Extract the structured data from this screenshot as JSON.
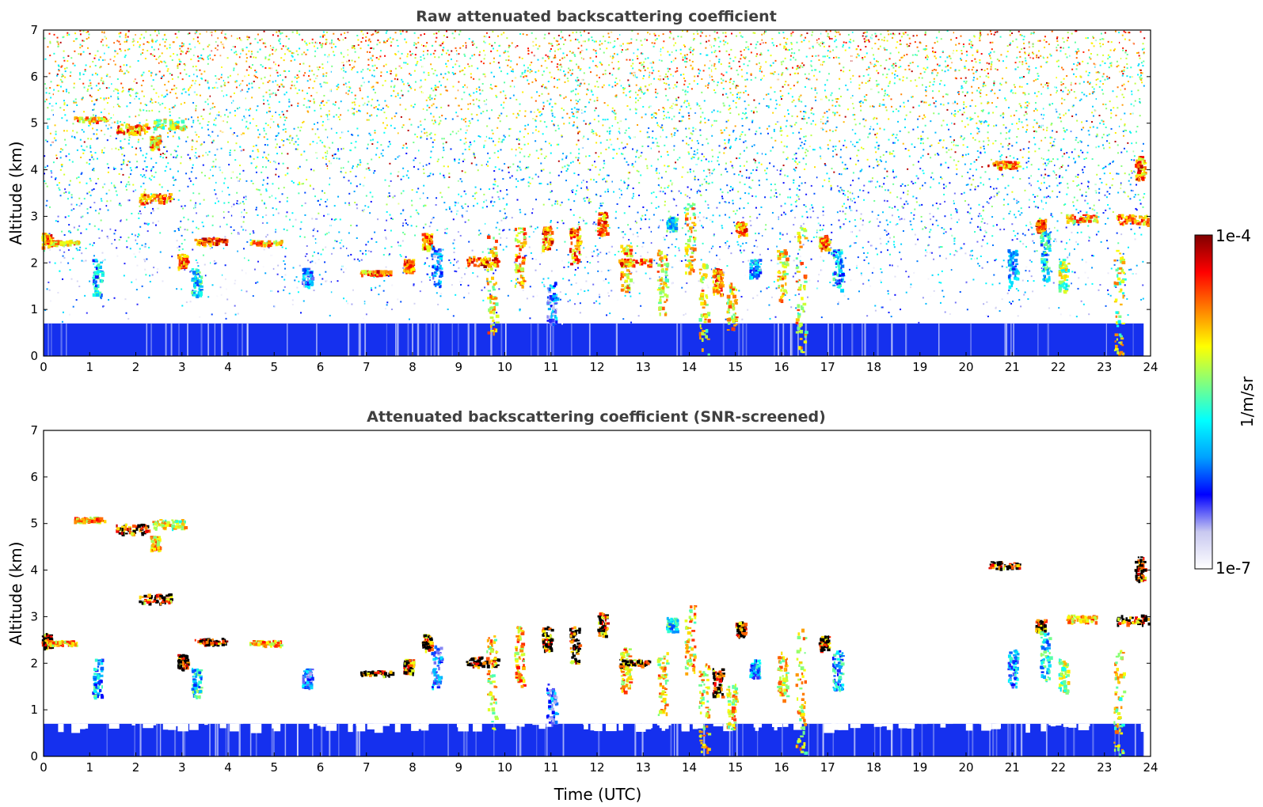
{
  "chart_data": [
    {
      "type": "heatmap",
      "title": "Raw attenuated backscattering coefficient",
      "xlabel": "",
      "ylabel": "Altitude (km)",
      "xlim": [
        0,
        24
      ],
      "ylim": [
        0,
        7
      ],
      "xticks": [
        "0",
        "1",
        "2",
        "3",
        "4",
        "5",
        "6",
        "7",
        "8",
        "9",
        "10",
        "11",
        "12",
        "13",
        "14",
        "15",
        "16",
        "17",
        "18",
        "19",
        "20",
        "21",
        "22",
        "23",
        "24"
      ],
      "yticks": [
        "0",
        "1",
        "2",
        "3",
        "4",
        "5",
        "6",
        "7"
      ],
      "data_end_hour": 23.85,
      "boundary_layer_top_km": 0.7,
      "noise": "dense speckle above boundary layer, increasing with altitude",
      "features": [
        {
          "x": 0.05,
          "y0": 2.35,
          "y1": 2.65,
          "level": 0.95
        },
        {
          "x": 0.4,
          "y0": 2.4,
          "y1": 2.5,
          "level": 0.9
        },
        {
          "x": 1.0,
          "y0": 5.05,
          "y1": 5.15,
          "level": 0.9
        },
        {
          "x": 1.15,
          "y0": 1.3,
          "y1": 2.1,
          "level": 0.55
        },
        {
          "x": 1.9,
          "y0": 4.8,
          "y1": 5.0,
          "level": 0.95
        },
        {
          "x": 2.4,
          "y0": 4.45,
          "y1": 4.75,
          "level": 0.9
        },
        {
          "x": 2.4,
          "y0": 3.3,
          "y1": 3.5,
          "level": 0.95
        },
        {
          "x": 2.7,
          "y0": 4.9,
          "y1": 5.1,
          "level": 0.8
        },
        {
          "x": 3.0,
          "y0": 1.9,
          "y1": 2.2,
          "level": 0.95
        },
        {
          "x": 3.3,
          "y0": 1.3,
          "y1": 1.9,
          "level": 0.6
        },
        {
          "x": 3.6,
          "y0": 2.42,
          "y1": 2.55,
          "level": 1.0
        },
        {
          "x": 4.8,
          "y0": 2.4,
          "y1": 2.5,
          "level": 0.9
        },
        {
          "x": 5.7,
          "y0": 1.5,
          "y1": 1.9,
          "level": 0.45
        },
        {
          "x": 7.2,
          "y0": 1.75,
          "y1": 1.85,
          "level": 0.95
        },
        {
          "x": 7.9,
          "y0": 1.8,
          "y1": 2.1,
          "level": 0.95
        },
        {
          "x": 8.3,
          "y0": 2.3,
          "y1": 2.65,
          "level": 0.95
        },
        {
          "x": 8.5,
          "y0": 1.5,
          "y1": 2.4,
          "level": 0.45
        },
        {
          "x": 9.5,
          "y0": 1.95,
          "y1": 2.15,
          "level": 1.0
        },
        {
          "x": 9.7,
          "y0": 0.5,
          "y1": 2.6,
          "level": 0.85
        },
        {
          "x": 10.3,
          "y0": 1.5,
          "y1": 2.8,
          "level": 0.9
        },
        {
          "x": 10.9,
          "y0": 2.3,
          "y1": 2.8,
          "level": 0.95
        },
        {
          "x": 11.0,
          "y0": 0.7,
          "y1": 1.6,
          "level": 0.45
        },
        {
          "x": 11.5,
          "y0": 2.0,
          "y1": 2.8,
          "level": 0.95
        },
        {
          "x": 12.1,
          "y0": 2.6,
          "y1": 3.1,
          "level": 0.95
        },
        {
          "x": 12.6,
          "y0": 1.4,
          "y1": 2.4,
          "level": 0.9
        },
        {
          "x": 12.8,
          "y0": 1.95,
          "y1": 2.1,
          "level": 0.95
        },
        {
          "x": 13.4,
          "y0": 0.9,
          "y1": 2.3,
          "level": 0.85
        },
        {
          "x": 13.6,
          "y0": 2.7,
          "y1": 3.0,
          "level": 0.6
        },
        {
          "x": 14.0,
          "y0": 1.8,
          "y1": 3.3,
          "level": 0.85
        },
        {
          "x": 14.3,
          "y0": 0.05,
          "y1": 2.0,
          "level": 0.85
        },
        {
          "x": 14.6,
          "y0": 1.3,
          "y1": 1.9,
          "level": 0.95
        },
        {
          "x": 14.9,
          "y0": 0.55,
          "y1": 1.6,
          "level": 0.85
        },
        {
          "x": 15.1,
          "y0": 2.6,
          "y1": 2.9,
          "level": 0.95
        },
        {
          "x": 15.4,
          "y0": 1.7,
          "y1": 2.1,
          "level": 0.5
        },
        {
          "x": 16.0,
          "y0": 1.2,
          "y1": 2.3,
          "level": 0.85
        },
        {
          "x": 16.4,
          "y0": 0.1,
          "y1": 2.8,
          "level": 0.85
        },
        {
          "x": 16.9,
          "y0": 2.3,
          "y1": 2.6,
          "level": 0.95
        },
        {
          "x": 17.2,
          "y0": 1.4,
          "y1": 2.3,
          "level": 0.55
        },
        {
          "x": 20.8,
          "y0": 4.05,
          "y1": 4.2,
          "level": 0.95
        },
        {
          "x": 21.0,
          "y0": 1.5,
          "y1": 2.3,
          "level": 0.5
        },
        {
          "x": 21.6,
          "y0": 2.7,
          "y1": 2.95,
          "level": 1.0
        },
        {
          "x": 21.7,
          "y0": 1.6,
          "y1": 2.7,
          "level": 0.6
        },
        {
          "x": 22.1,
          "y0": 1.4,
          "y1": 2.1,
          "level": 0.75
        },
        {
          "x": 22.5,
          "y0": 2.9,
          "y1": 3.05,
          "level": 0.9
        },
        {
          "x": 23.3,
          "y0": 0.05,
          "y1": 2.3,
          "level": 0.8
        },
        {
          "x": 23.6,
          "y0": 2.85,
          "y1": 3.05,
          "level": 0.95
        },
        {
          "x": 23.75,
          "y0": 3.8,
          "y1": 4.3,
          "level": 0.95
        }
      ]
    },
    {
      "type": "heatmap",
      "title": "Attenuated backscattering coefficient (SNR-screened)",
      "xlabel": "Time (UTC)",
      "ylabel": "Altitude (km)",
      "xlim": [
        0,
        24
      ],
      "ylim": [
        0,
        7
      ],
      "xticks": [
        "0",
        "1",
        "2",
        "3",
        "4",
        "5",
        "6",
        "7",
        "8",
        "9",
        "10",
        "11",
        "12",
        "13",
        "14",
        "15",
        "16",
        "17",
        "18",
        "19",
        "20",
        "21",
        "22",
        "23",
        "24"
      ],
      "yticks": [
        "0",
        "1",
        "2",
        "3",
        "4",
        "5",
        "6",
        "7"
      ],
      "data_end_hour": 23.85,
      "boundary_layer_top_km": 0.7,
      "noise": "none (screened)",
      "features": "same cloud features as raw panel, with saturated values shown in black"
    }
  ],
  "colorbar": {
    "label": "1/m/sr",
    "max_label": "1e-4",
    "min_label": "1e-7",
    "colors": [
      "#ffffff",
      "#c8c8f0",
      "#0000ff",
      "#00a0ff",
      "#00ffff",
      "#80ff80",
      "#ffff00",
      "#ff8000",
      "#ff0000",
      "#800000"
    ]
  }
}
